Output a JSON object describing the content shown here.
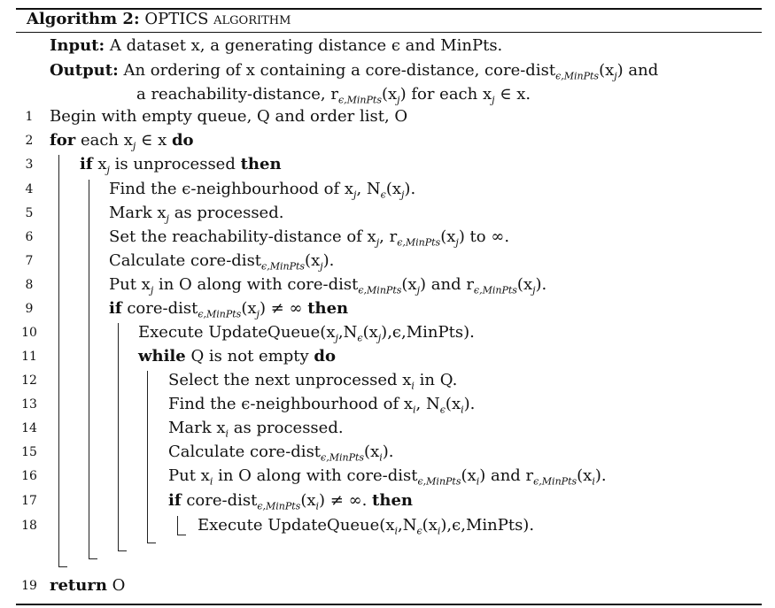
{
  "algorithm": {
    "label": "Algorithm 2:",
    "title": "OPTICS algorithm",
    "input_label": "Input:",
    "input_text": "A dataset x, a generating distance ϵ and MinPts.",
    "output_label": "Output:",
    "output_text_1": "An ordering of x containing a core-distance, core-dist",
    "output_sub_1": "ϵ,MinPts",
    "output_text_1b": "(x",
    "output_text_1c": ") and",
    "output_text_2": "a reachability-distance, r",
    "output_sub_2": "ϵ,MinPts",
    "output_text_2b": "(x",
    "output_text_2c": ") for each x",
    "output_text_2d": " ∈ x."
  },
  "lines": [
    {
      "n": "1",
      "text": "Begin with empty queue, Q and order list, O"
    },
    {
      "n": "2",
      "kw": "for",
      "text": " each x",
      "sub": "j",
      "text2": " ∈ x ",
      "kw2": "do"
    },
    {
      "n": "3",
      "kw": "if",
      "text": " x",
      "sub": "j",
      "text2": " is unprocessed ",
      "kw2": "then"
    },
    {
      "n": "4",
      "text": "Find the ϵ-neighbourhood of x",
      "sub": "j",
      "text2": ",  N",
      "sub2": "ϵ",
      "text3": "(x",
      "sub3": "j",
      "text4": ")."
    },
    {
      "n": "5",
      "text": "Mark x",
      "sub": "j",
      "text2": " as processed."
    },
    {
      "n": "6",
      "text": "Set the reachability-distance of x",
      "sub": "j",
      "text2": ", r",
      "sub2": "ϵ,MinPts",
      "text3": "(x",
      "sub3": "j",
      "text4": ") to ∞."
    },
    {
      "n": "7",
      "text": "Calculate core-dist",
      "sub": "ϵ,MinPts",
      "text2": "(x",
      "sub2": "j",
      "text3": ")."
    },
    {
      "n": "8",
      "text": "Put x",
      "sub": "j",
      "text2": " in O along with core-dist",
      "sub2": "ϵ,MinPts",
      "text3": "(x",
      "sub3": "j",
      "text4": ") and r",
      "sub4": "ϵ,MinPts",
      "text5": "(x",
      "sub5": "j",
      "text6": ")."
    },
    {
      "n": "9",
      "kw": "if",
      "text": " core-dist",
      "sub": "ϵ,MinPts",
      "text2": "(x",
      "sub2": "j",
      "text3": ") ≠ ∞ ",
      "kw2": "then"
    },
    {
      "n": "10",
      "text": "Execute UpdateQueue(x",
      "sub": "j",
      "text2": ",N",
      "sub2": "ϵ",
      "text3": "(x",
      "sub3": "j",
      "text4": "),ϵ,MinPts)."
    },
    {
      "n": "11",
      "kw": "while",
      "text": " Q is not empty ",
      "kw2": "do"
    },
    {
      "n": "12",
      "text": "Select the next unprocessed x",
      "sub": "i",
      "text2": " in Q."
    },
    {
      "n": "13",
      "text": "Find the ϵ-neighbourhood of x",
      "sub": "i",
      "text2": ",  N",
      "sub2": "ϵ",
      "text3": "(x",
      "sub3": "i",
      "text4": ")."
    },
    {
      "n": "14",
      "text": "Mark x",
      "sub": "i",
      "text2": " as processed."
    },
    {
      "n": "15",
      "text": "Calculate core-dist",
      "sub": "ϵ,MinPts",
      "text2": "(x",
      "sub2": "i",
      "text3": ")."
    },
    {
      "n": "16",
      "text": "Put x",
      "sub": "i",
      "text2": " in O along with core-dist",
      "sub2": "ϵ,MinPts",
      "text3": "(x",
      "sub3": "i",
      "text4": ") and r",
      "sub4": "ϵ,MinPts",
      "text5": "(x",
      "sub5": "i",
      "text6": ")."
    },
    {
      "n": "17",
      "kw": "if",
      "text": " core-dist",
      "sub": "ϵ,MinPts",
      "text2": "(x",
      "sub2": "i",
      "text3": ") ≠ ∞. ",
      "kw2": "then"
    },
    {
      "n": "18",
      "text": "Execute UpdateQueue(x",
      "sub": "i",
      "text2": ",N",
      "sub2": "ϵ",
      "text3": "(x",
      "sub3": "i",
      "text4": "),ϵ,MinPts)."
    },
    {
      "n": "19",
      "kw": "return",
      "text": " O"
    }
  ]
}
